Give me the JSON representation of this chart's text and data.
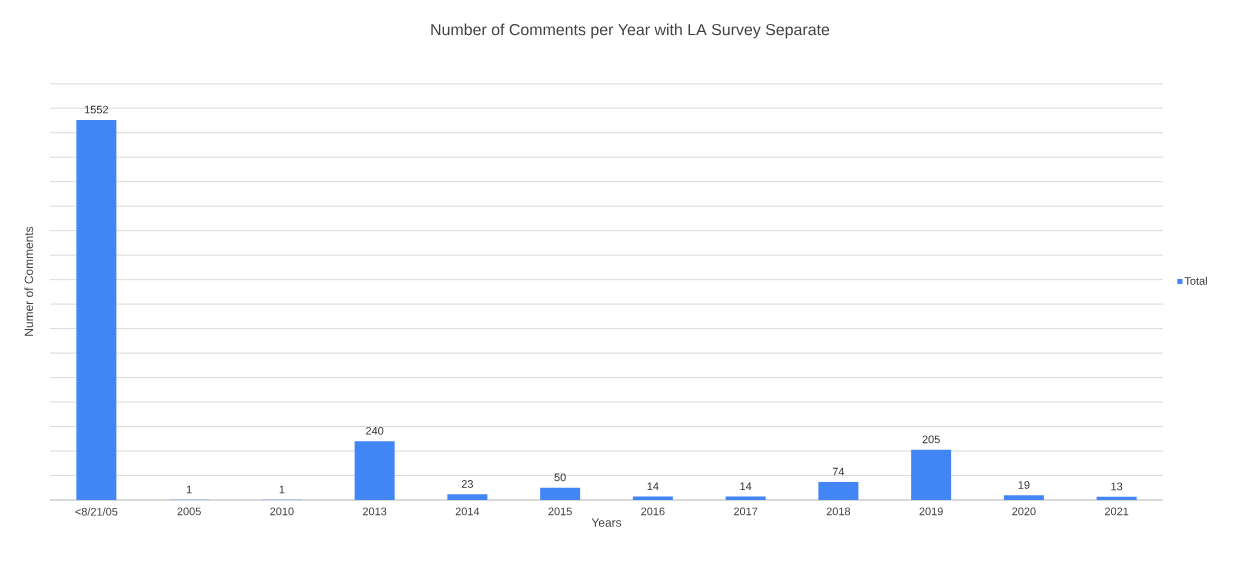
{
  "chart_data": {
    "type": "bar",
    "title": "Number of Comments per Year with LA Survey Separate",
    "xlabel": "Years",
    "ylabel": "Numer of Comments",
    "categories": [
      "<8/21/05",
      "2005",
      "2010",
      "2013",
      "2014",
      "2015",
      "2016",
      "2017",
      "2018",
      "2019",
      "2020",
      "2021"
    ],
    "series": [
      {
        "name": "Total",
        "color": "#4285f4",
        "values": [
          1552,
          1,
          1,
          240,
          23,
          50,
          14,
          14,
          74,
          205,
          19,
          13
        ]
      }
    ],
    "grid": "y",
    "legend": "right",
    "tick_labels": "x",
    "data_labels": true
  }
}
